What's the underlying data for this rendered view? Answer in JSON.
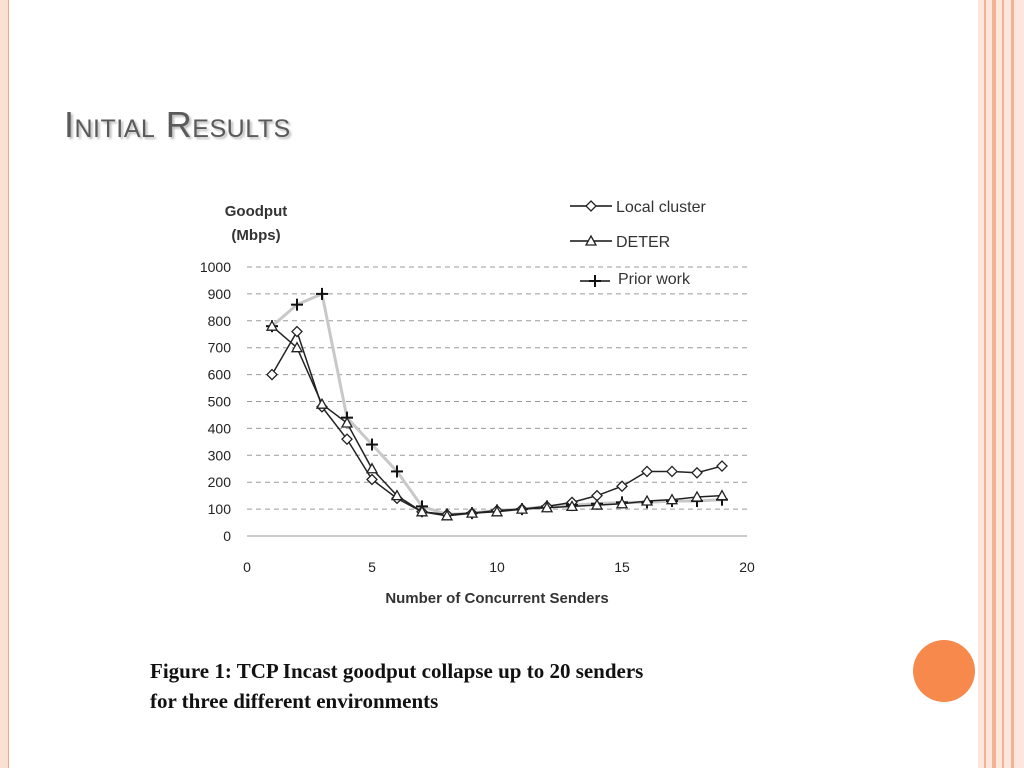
{
  "slide": {
    "title": "Initial Results",
    "caption_line1": "Figure 1:  TCP Incast goodput collapse up to 20 senders",
    "caption_line2": "for three different environments"
  },
  "chart_data": {
    "type": "line",
    "ylabel_line1": "Goodput",
    "ylabel_line2": "(Mbps)",
    "xlabel": "Number of Concurrent Senders",
    "xlim": [
      0,
      20
    ],
    "ylim": [
      0,
      1000
    ],
    "xticks": [
      0,
      5,
      10,
      15,
      20
    ],
    "yticks": [
      0,
      100,
      200,
      300,
      400,
      500,
      600,
      700,
      800,
      900,
      1000
    ],
    "grid": "horizontal dashed",
    "legend_position": "top-right",
    "series": [
      {
        "name": "Prior work",
        "marker": "plus",
        "color": "#c8c8c8",
        "x": [
          1,
          2,
          3,
          4,
          5,
          6,
          7,
          8,
          9,
          10,
          11,
          12,
          13,
          14,
          15,
          16,
          17,
          18,
          19
        ],
        "y": [
          780,
          860,
          900,
          440,
          340,
          240,
          110,
          80,
          85,
          95,
          100,
          110,
          115,
          120,
          125,
          125,
          130,
          130,
          135
        ]
      },
      {
        "name": "Local cluster",
        "marker": "diamond",
        "color": "#222222",
        "x": [
          1,
          2,
          3,
          4,
          5,
          6,
          7,
          8,
          9,
          10,
          11,
          12,
          13,
          14,
          15,
          16,
          17,
          18,
          19
        ],
        "y": [
          600,
          760,
          480,
          360,
          210,
          140,
          90,
          80,
          85,
          95,
          100,
          110,
          125,
          150,
          185,
          240,
          240,
          235,
          260
        ]
      },
      {
        "name": "DETER",
        "marker": "triangle",
        "color": "#222222",
        "x": [
          1,
          2,
          3,
          4,
          5,
          6,
          7,
          8,
          9,
          10,
          11,
          12,
          13,
          14,
          15,
          16,
          17,
          18,
          19
        ],
        "y": [
          780,
          700,
          490,
          420,
          250,
          150,
          90,
          75,
          85,
          90,
          100,
          105,
          110,
          115,
          120,
          130,
          135,
          145,
          150
        ]
      }
    ]
  }
}
